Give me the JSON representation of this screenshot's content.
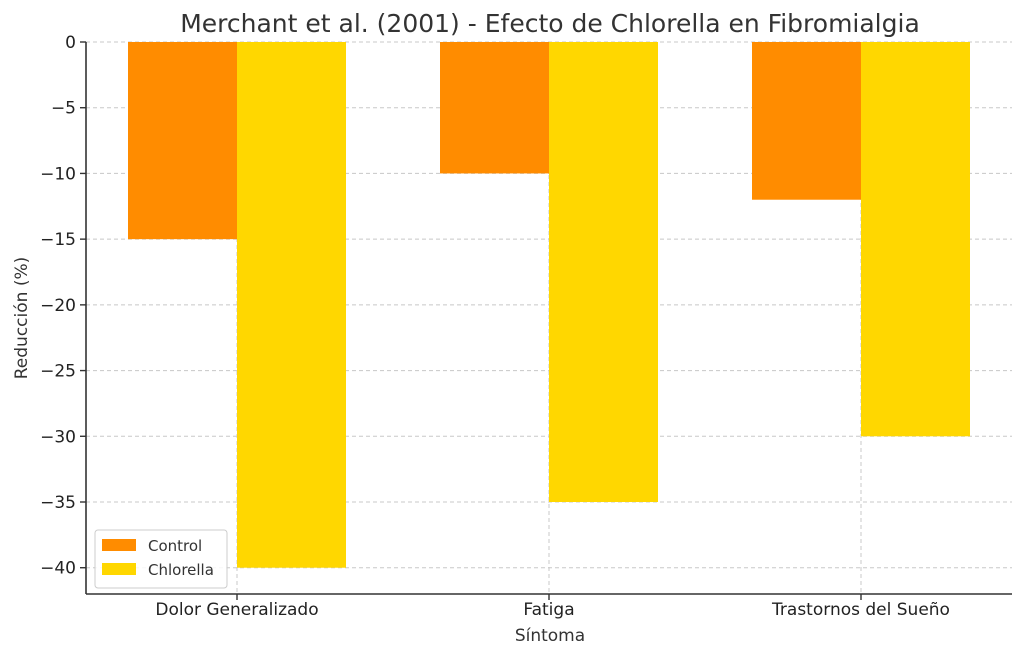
{
  "chart_data": {
    "type": "bar",
    "title": "Merchant et al. (2001) - Efecto de Chlorella en Fibromialgia",
    "xlabel": "Síntoma",
    "ylabel": "Reducción (%)",
    "categories": [
      "Dolor Generalizado",
      "Fatiga",
      "Trastornos del Sueño"
    ],
    "series": [
      {
        "name": "Control",
        "color": "#ff8c00",
        "values": [
          -15,
          -10,
          -12
        ]
      },
      {
        "name": "Chlorella",
        "color": "#ffd700",
        "values": [
          -40,
          -35,
          -30
        ]
      }
    ],
    "ylim": [
      -42,
      0
    ],
    "yticks": [
      0,
      -5,
      -10,
      -15,
      -20,
      -25,
      -30,
      -35,
      -40
    ],
    "ytick_labels": [
      "0",
      "−5",
      "−10",
      "−15",
      "−20",
      "−25",
      "−30",
      "−35",
      "−40"
    ],
    "grid": true,
    "legend_position": "bottom-left"
  }
}
